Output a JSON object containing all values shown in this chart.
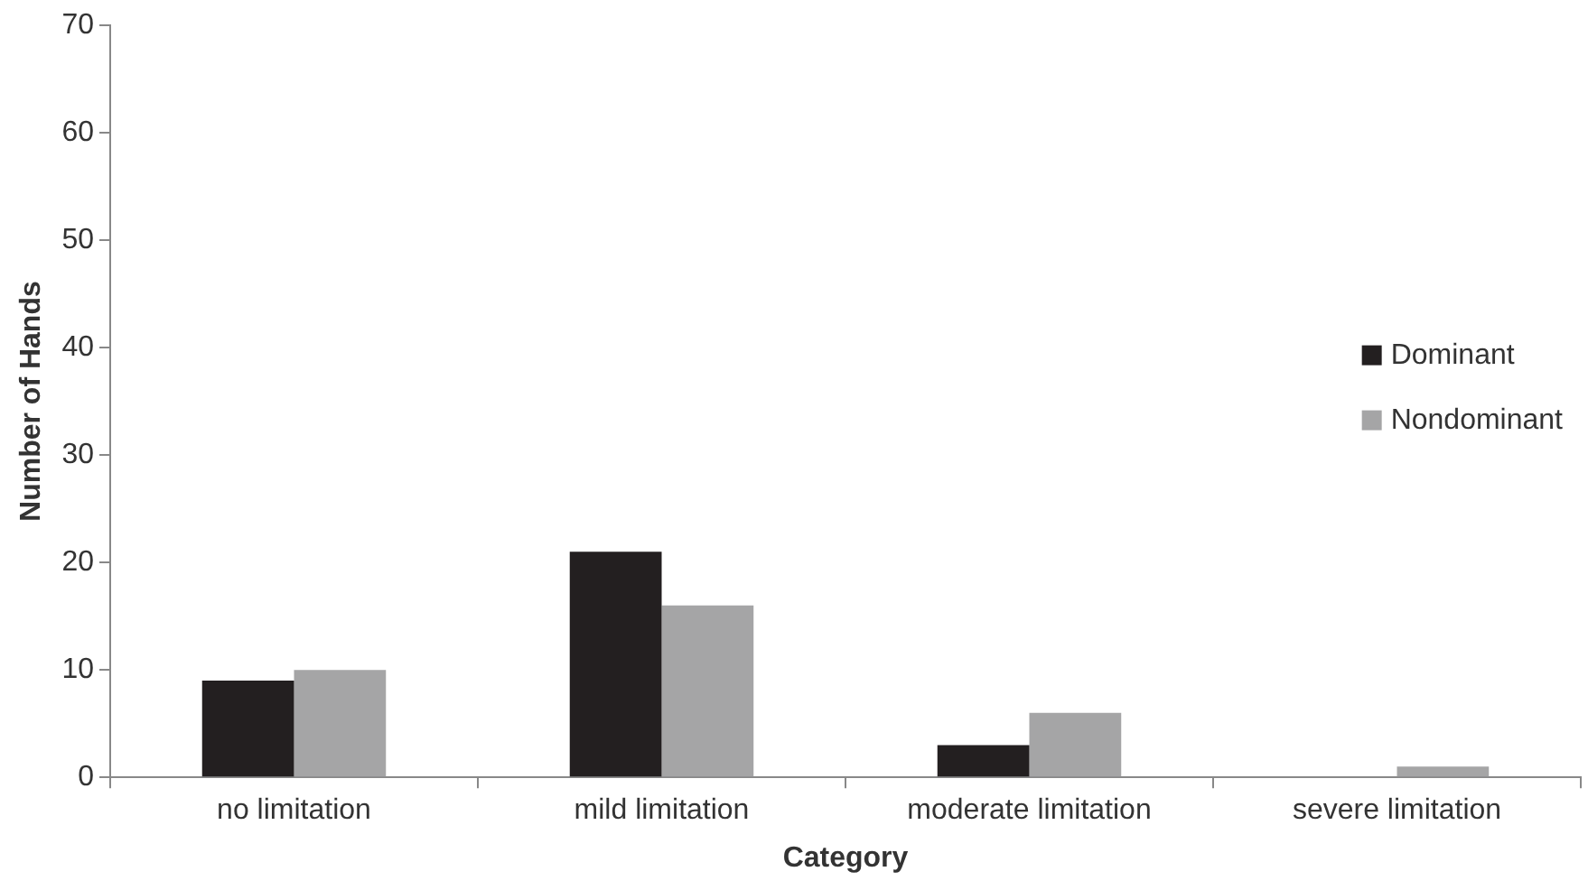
{
  "chart_data": {
    "type": "bar",
    "xlabel": "Category",
    "ylabel": "Number of Hands",
    "categories": [
      "no limitation",
      "mild limitation",
      "moderate limitation",
      "severe limitation"
    ],
    "series": [
      {
        "name": "Dominant",
        "color": "#231f20",
        "values": [
          9,
          21,
          3,
          0
        ]
      },
      {
        "name": "Nondominant",
        "color": "#a5a5a6",
        "values": [
          10,
          16,
          6,
          1
        ]
      }
    ],
    "ylim": [
      0,
      70
    ],
    "yticks": [
      0,
      10,
      20,
      30,
      40,
      50,
      60,
      70
    ],
    "grid": false,
    "legend": "right"
  }
}
